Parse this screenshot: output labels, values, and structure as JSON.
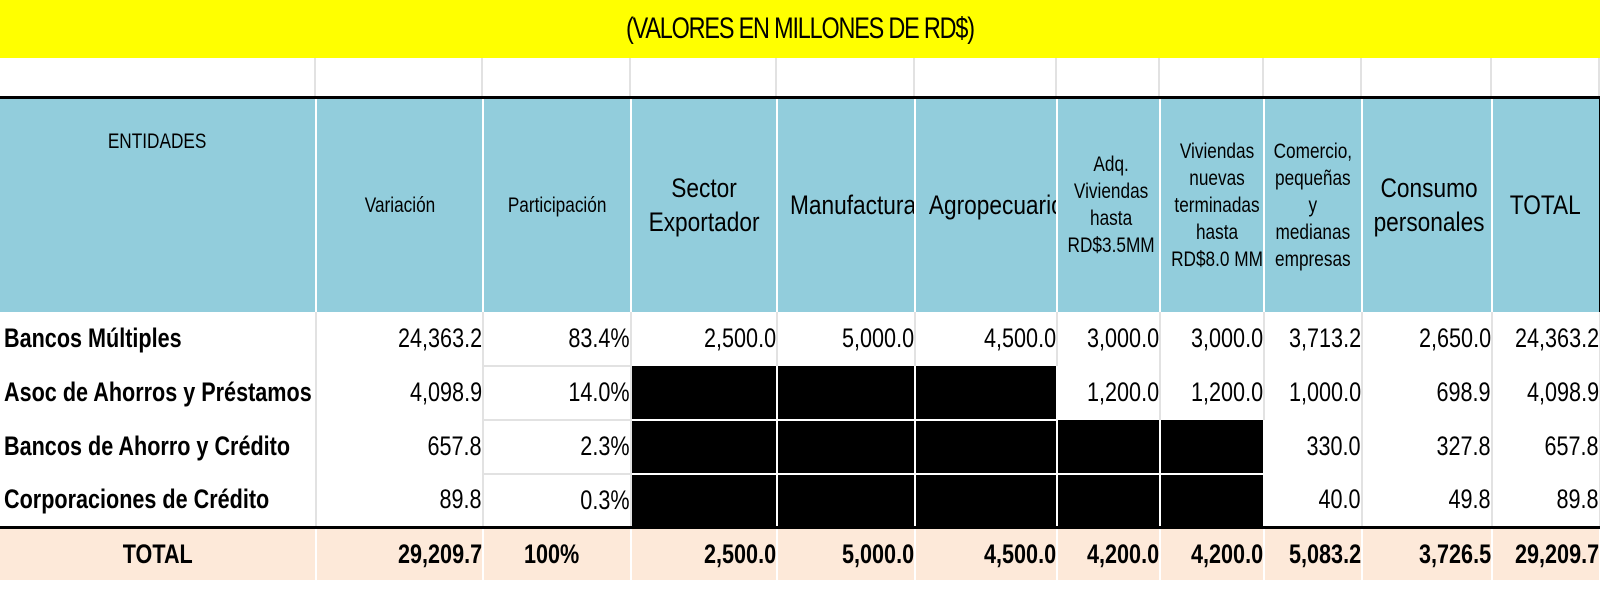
{
  "title": "(VALORES EN MILLONES DE RD$)",
  "headers": {
    "entidades": "ENTIDADES",
    "variacion": "Variación",
    "participacion": "Participación",
    "sector_exportador": [
      "Sector",
      "Exportador"
    ],
    "manufactura": "Manufactura",
    "agropecuario": "Agropecuario",
    "adq_viviendas": [
      "Adq.",
      "Viviendas",
      "hasta",
      "RD$3.5MM"
    ],
    "viviendas_nuevas": [
      "Viviendas",
      "nuevas",
      "terminadas",
      "hasta",
      "RD$8.0 MM"
    ],
    "comercio": [
      "Comercio,",
      "pequeñas",
      "y",
      "medianas",
      "empresas"
    ],
    "consumo": [
      "Consumo",
      "personales"
    ],
    "total": "TOTAL"
  },
  "rows": [
    {
      "entidad": "Bancos Múltiples",
      "variacion": "24,363.2",
      "participacion": "83.4%",
      "sector_exportador": "2,500.0",
      "manufactura": "5,000.0",
      "agropecuario": "4,500.0",
      "adq_viviendas": "3,000.0",
      "viviendas_nuevas": "3,000.0",
      "comercio": "3,713.2",
      "consumo": "2,650.0",
      "total": "24,363.2"
    },
    {
      "entidad": "Asoc de Ahorros y Préstamos",
      "variacion": "4,098.9",
      "participacion": "14.0%",
      "adq_viviendas": "1,200.0",
      "viviendas_nuevas": "1,200.0",
      "comercio": "1,000.0",
      "consumo": "698.9",
      "total": "4,098.9"
    },
    {
      "entidad": "Bancos de Ahorro y Crédito",
      "variacion": "657.8",
      "participacion": "2.3%",
      "comercio": "330.0",
      "consumo": "327.8",
      "total": "657.8"
    },
    {
      "entidad": "Corporaciones de Crédito",
      "variacion": "89.8",
      "participacion": "0.3%",
      "comercio": "40.0",
      "consumo": "49.8",
      "total": "89.8"
    }
  ],
  "totals": {
    "label": "TOTAL",
    "variacion": "29,209.7",
    "participacion": "100%",
    "sector_exportador": "2,500.0",
    "manufactura": "5,000.0",
    "agropecuario": "4,500.0",
    "adq_viviendas": "4,200.0",
    "viviendas_nuevas": "4,200.0",
    "comercio": "5,083.2",
    "consumo": "3,726.5",
    "total": "29,209.7"
  }
}
